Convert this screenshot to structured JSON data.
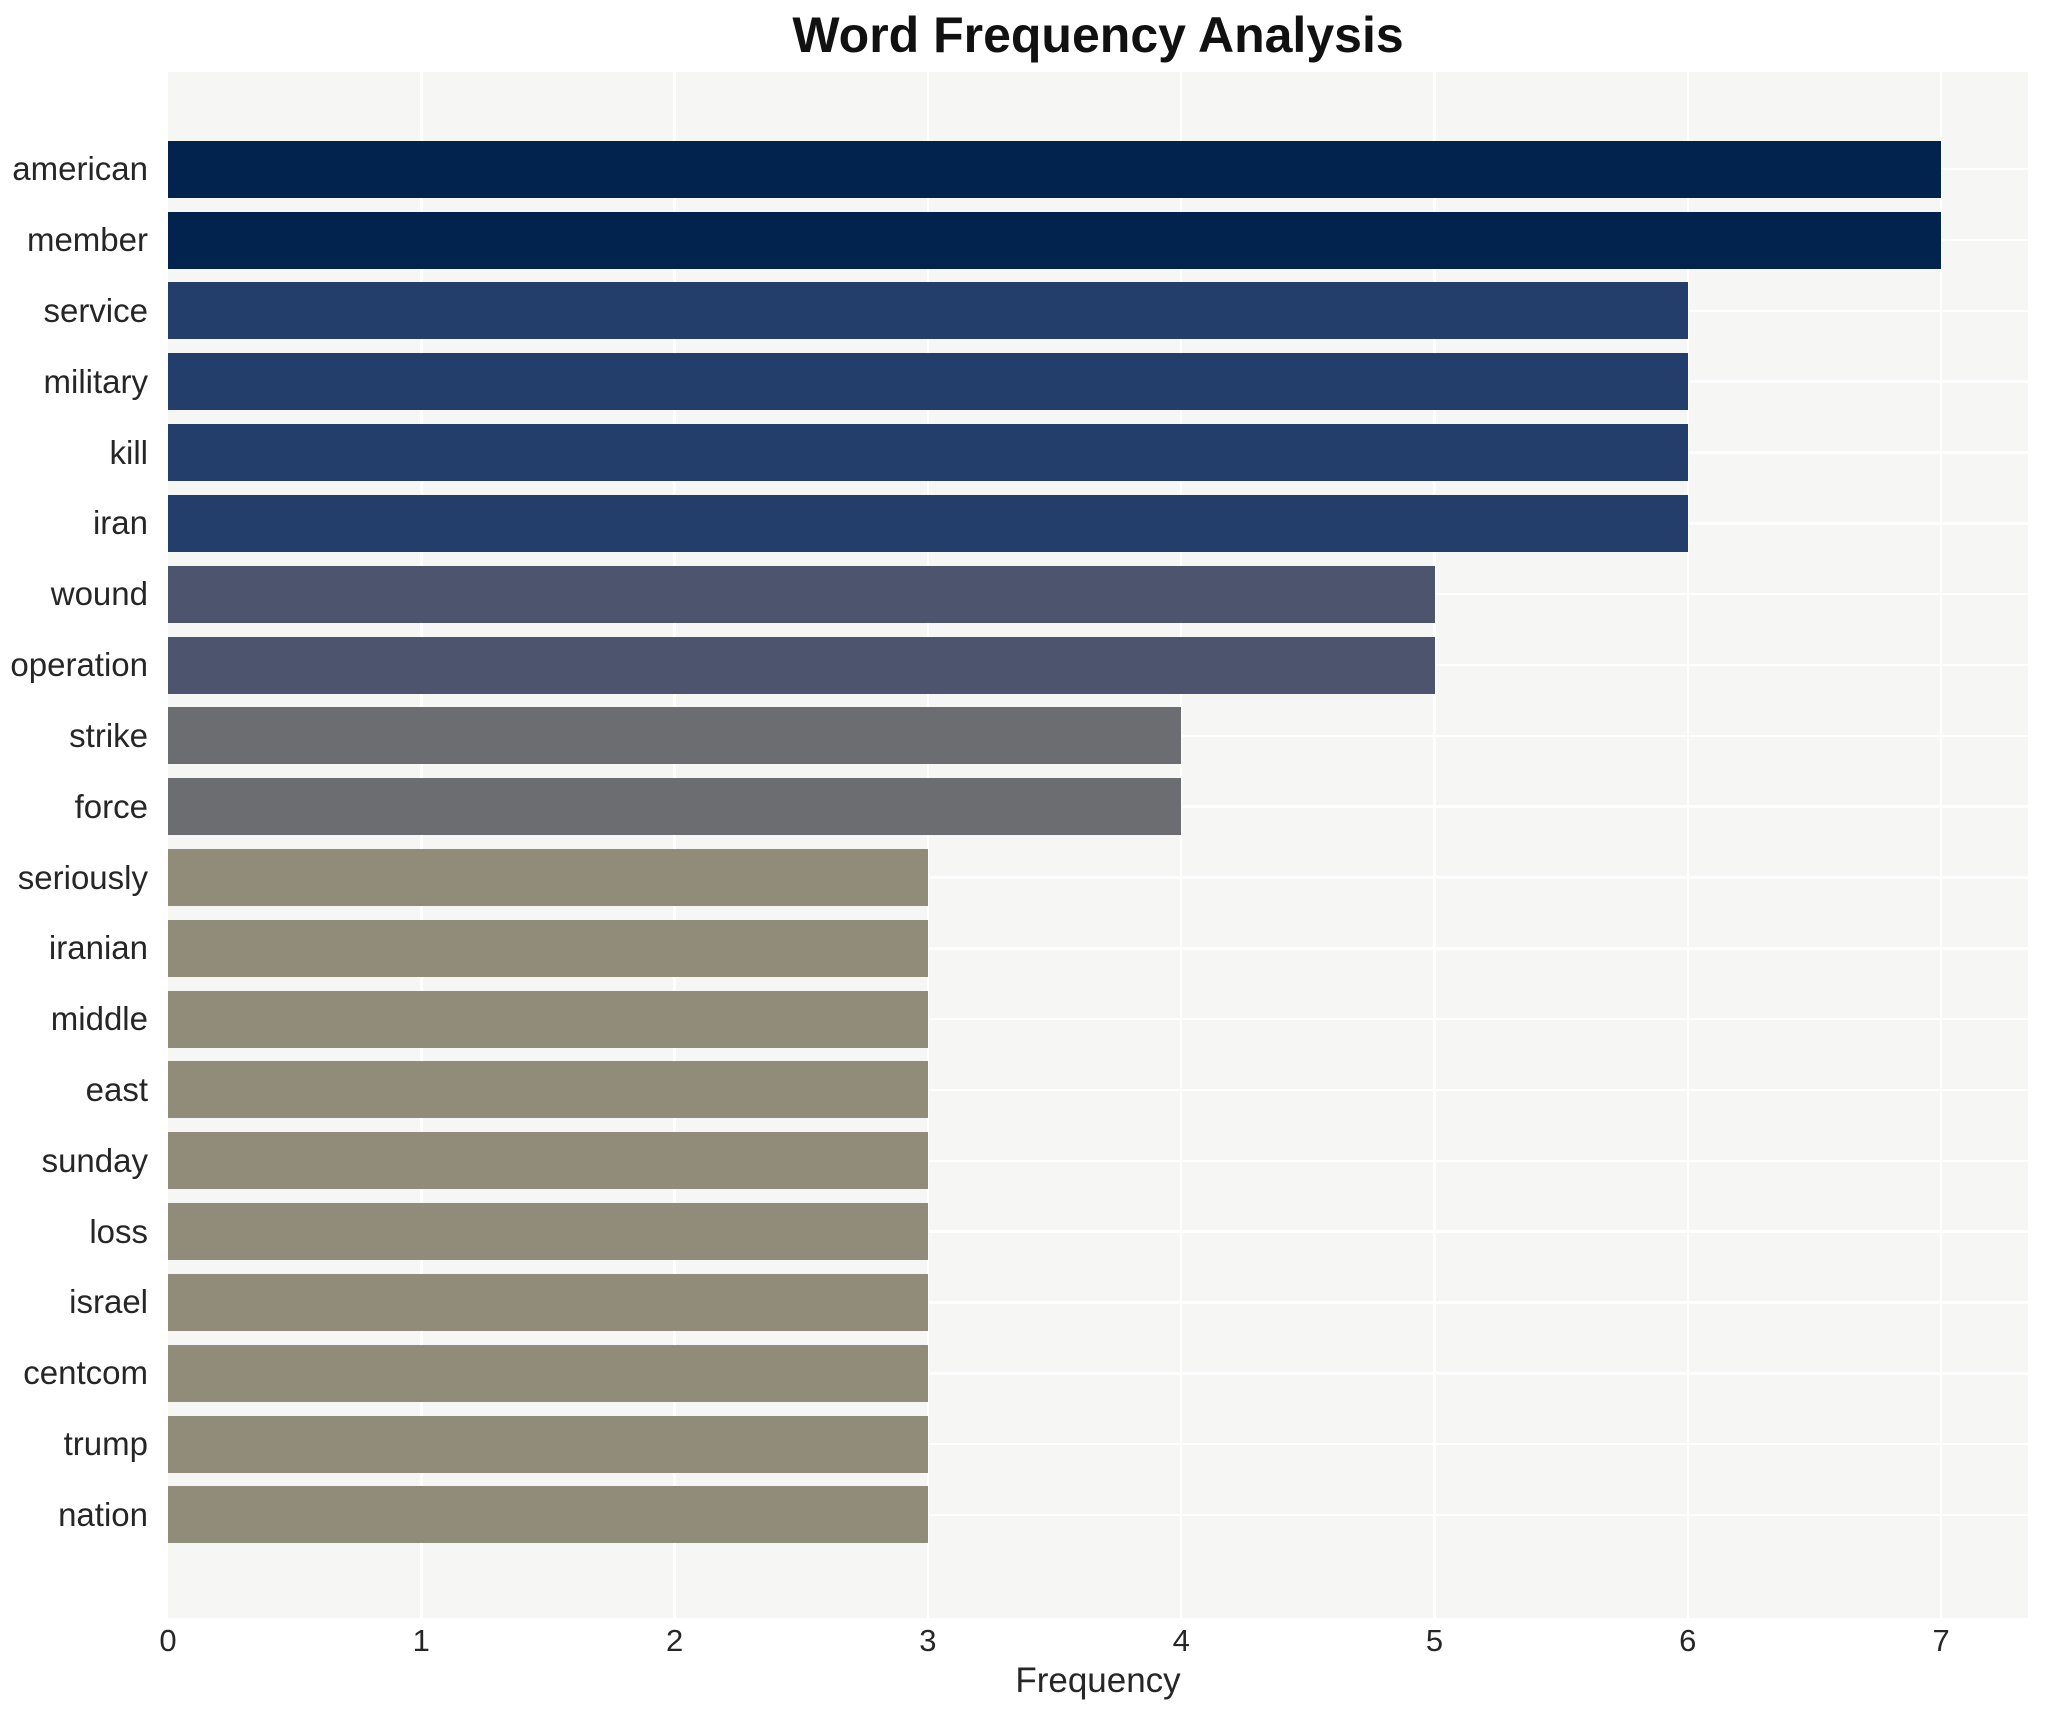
{
  "chart_data": {
    "type": "bar",
    "orientation": "horizontal",
    "title": "Word Frequency Analysis",
    "xlabel": "Frequency",
    "ylabel": "",
    "categories": [
      "american",
      "member",
      "service",
      "military",
      "kill",
      "iran",
      "wound",
      "operation",
      "strike",
      "force",
      "seriously",
      "iranian",
      "middle",
      "east",
      "sunday",
      "loss",
      "israel",
      "centcom",
      "trump",
      "nation"
    ],
    "values": [
      7,
      7,
      6,
      6,
      6,
      6,
      5,
      5,
      4,
      4,
      3,
      3,
      3,
      3,
      3,
      3,
      3,
      3,
      3,
      3
    ],
    "xticks": [
      "0",
      "1",
      "2",
      "3",
      "4",
      "5",
      "6",
      "7"
    ],
    "xlim": [
      0,
      7.34
    ],
    "grid": true,
    "legend": false,
    "value_colors": {
      "7": "#02234d",
      "6": "#243e6c",
      "5": "#4d556e",
      "4": "#6c6d71",
      "3": "#918c7a"
    },
    "plot_background": "#f6f6f5",
    "gridline_color": "#ffffff",
    "text_color": "#262626"
  }
}
